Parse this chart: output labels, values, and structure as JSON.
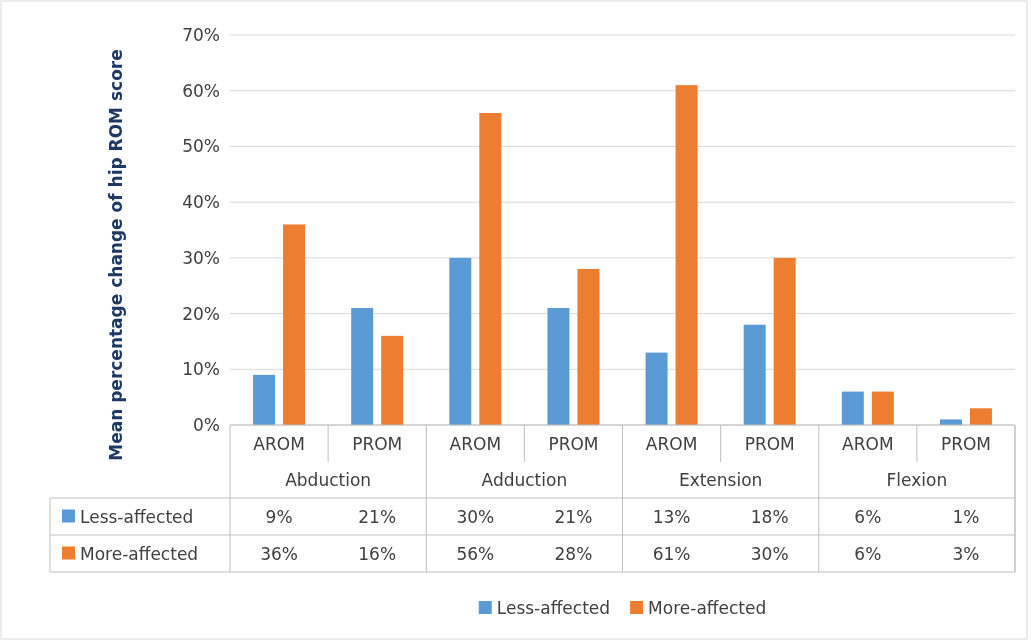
{
  "chart_data": {
    "type": "bar",
    "ylabel": "Mean percentage change of hip ROM score",
    "categories": [
      "AROM",
      "PROM",
      "AROM",
      "PROM",
      "AROM",
      "PROM",
      "AROM",
      "PROM"
    ],
    "annotations": [
      "Abduction",
      "Adduction",
      "Extension",
      "Flexion"
    ],
    "series": [
      {
        "name": "Less-affected",
        "color": "#5b9bd5",
        "values": [
          9,
          21,
          30,
          21,
          13,
          18,
          6,
          1
        ],
        "value_labels": [
          "9%",
          "21%",
          "30%",
          "21%",
          "13%",
          "18%",
          "6%",
          "1%"
        ]
      },
      {
        "name": "More-affected",
        "color": "#ed7d31",
        "values": [
          36,
          16,
          56,
          28,
          61,
          30,
          6,
          3
        ],
        "value_labels": [
          "36%",
          "16%",
          "56%",
          "28%",
          "61%",
          "30%",
          "6%",
          "3%"
        ]
      }
    ],
    "ylim": [
      0,
      70
    ],
    "yticks": [
      {
        "value": 0,
        "label": "0%"
      },
      {
        "value": 10,
        "label": "10%"
      },
      {
        "value": 20,
        "label": "20%"
      },
      {
        "value": 30,
        "label": "30%"
      },
      {
        "value": 40,
        "label": "40%"
      },
      {
        "value": 50,
        "label": "50%"
      },
      {
        "value": 60,
        "label": "60%"
      },
      {
        "value": 70,
        "label": "70%"
      }
    ],
    "grid": "y",
    "legend": "bottom"
  }
}
